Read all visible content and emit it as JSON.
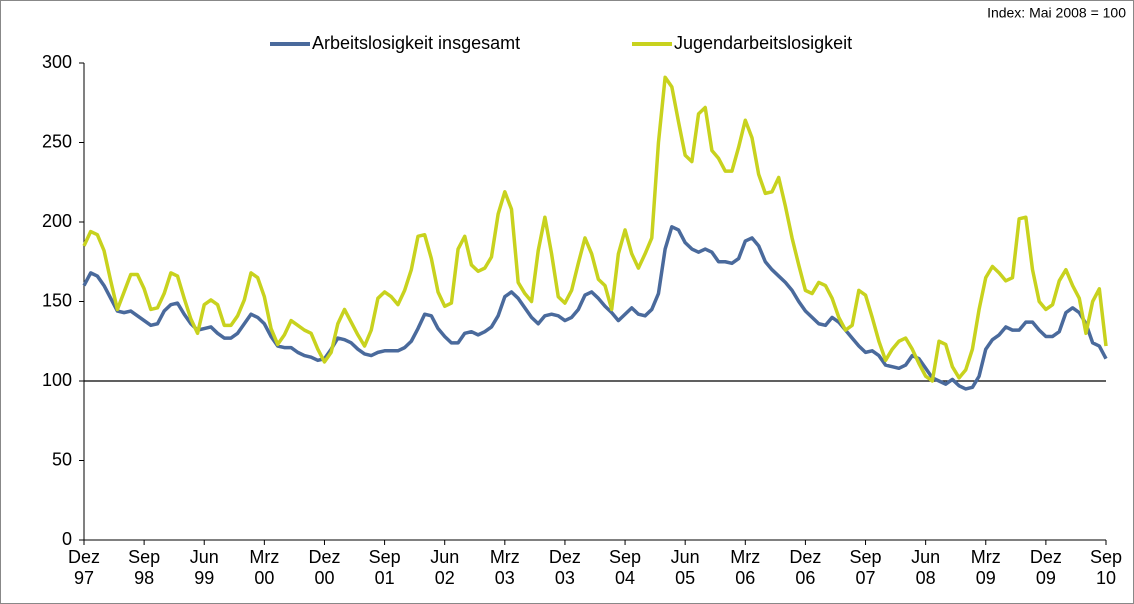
{
  "chart_data": {
    "type": "line",
    "annotation": "Index: Mai 2008 = 100",
    "reference_line": 100,
    "ylim": [
      0,
      300
    ],
    "yticks": [
      0,
      50,
      100,
      150,
      200,
      250,
      300
    ],
    "legend": "top",
    "categories": [
      "Dez 97",
      null,
      null,
      null,
      null,
      null,
      null,
      null,
      null,
      "Sep 98",
      null,
      null,
      null,
      null,
      null,
      null,
      null,
      null,
      "Jun 99",
      null,
      null,
      null,
      null,
      null,
      null,
      null,
      null,
      "Mrz 00",
      null,
      null,
      null,
      null,
      null,
      null,
      null,
      null,
      "Dez 00",
      null,
      null,
      null,
      null,
      null,
      null,
      null,
      null,
      "Sep 01",
      null,
      null,
      null,
      null,
      null,
      null,
      null,
      null,
      "Jun 02",
      null,
      null,
      null,
      null,
      null,
      null,
      null,
      null,
      "Mrz 03",
      null,
      null,
      null,
      null,
      null,
      null,
      null,
      null,
      "Dez 03",
      null,
      null,
      null,
      null,
      null,
      null,
      null,
      null,
      "Sep 04",
      null,
      null,
      null,
      null,
      null,
      null,
      null,
      null,
      "Jun 05",
      null,
      null,
      null,
      null,
      null,
      null,
      null,
      null,
      "Mrz 06",
      null,
      null,
      null,
      null,
      null,
      null,
      null,
      null,
      "Dez 06",
      null,
      null,
      null,
      null,
      null,
      null,
      null,
      null,
      "Sep 07",
      null,
      null,
      null,
      null,
      null,
      null,
      null,
      null,
      "Jun 08",
      null,
      null,
      null,
      null,
      null,
      null,
      null,
      null,
      "Mrz 09",
      null,
      null,
      null,
      null,
      null,
      null,
      null,
      null,
      "Dez 09",
      null,
      null,
      null,
      null,
      null,
      null,
      null,
      null,
      "Sep 10"
    ],
    "series": [
      {
        "name": "Arbeitslosigkeit insgesamt",
        "color": "#4a6a9c",
        "values": [
          160,
          168,
          166,
          160,
          152,
          144,
          143,
          144,
          141,
          138,
          135,
          136,
          144,
          148,
          149,
          142,
          136,
          132,
          133,
          134,
          130,
          127,
          127,
          130,
          136,
          142,
          140,
          136,
          128,
          122,
          121,
          121,
          118,
          116,
          115,
          113,
          114,
          120,
          127,
          126,
          124,
          120,
          117,
          116,
          118,
          119,
          119,
          119,
          121,
          125,
          133,
          142,
          141,
          133,
          128,
          124,
          124,
          130,
          131,
          129,
          131,
          134,
          141,
          153,
          156,
          152,
          146,
          140,
          136,
          141,
          142,
          141,
          138,
          140,
          145,
          154,
          156,
          152,
          147,
          143,
          138,
          142,
          146,
          142,
          141,
          145,
          155,
          183,
          197,
          195,
          187,
          183,
          181,
          183,
          181,
          175,
          175,
          174,
          177,
          188,
          190,
          185,
          175,
          170,
          166,
          162,
          157,
          150,
          144,
          140,
          136,
          135,
          140,
          137,
          132,
          127,
          122,
          118,
          119,
          116,
          110,
          109,
          108,
          110,
          116,
          114,
          108,
          102,
          100,
          98,
          101,
          97,
          95,
          96,
          103,
          120,
          126,
          129,
          134,
          132,
          132,
          137,
          137,
          132,
          128,
          128,
          131,
          143,
          146,
          143,
          136,
          124,
          122,
          114
        ]
      },
      {
        "name": "Jugendarbeitslosigkeit",
        "color": "#c8d21e",
        "values": [
          185,
          194,
          192,
          182,
          163,
          145,
          156,
          167,
          167,
          158,
          145,
          146,
          155,
          168,
          166,
          152,
          139,
          130,
          148,
          151,
          148,
          135,
          135,
          141,
          151,
          168,
          165,
          153,
          133,
          123,
          129,
          138,
          135,
          132,
          130,
          120,
          112,
          118,
          136,
          145,
          137,
          129,
          122,
          132,
          152,
          156,
          153,
          148,
          157,
          170,
          191,
          192,
          177,
          156,
          147,
          149,
          183,
          191,
          173,
          169,
          171,
          178,
          205,
          219,
          208,
          162,
          155,
          150,
          182,
          203,
          180,
          153,
          149,
          157,
          174,
          190,
          180,
          164,
          160,
          145,
          180,
          195,
          180,
          171,
          180,
          190,
          250,
          291,
          285,
          263,
          242,
          238,
          268,
          272,
          245,
          240,
          232,
          232,
          247,
          264,
          253,
          230,
          218,
          219,
          228,
          210,
          190,
          173,
          157,
          155,
          162,
          160,
          152,
          140,
          132,
          135,
          157,
          154,
          140,
          125,
          113,
          120,
          125,
          127,
          120,
          111,
          103,
          100,
          125,
          123,
          109,
          102,
          107,
          120,
          145,
          165,
          172,
          168,
          163,
          165,
          202,
          203,
          170,
          150,
          145,
          148,
          163,
          170,
          160,
          152,
          130,
          150,
          158,
          122
        ]
      }
    ]
  }
}
